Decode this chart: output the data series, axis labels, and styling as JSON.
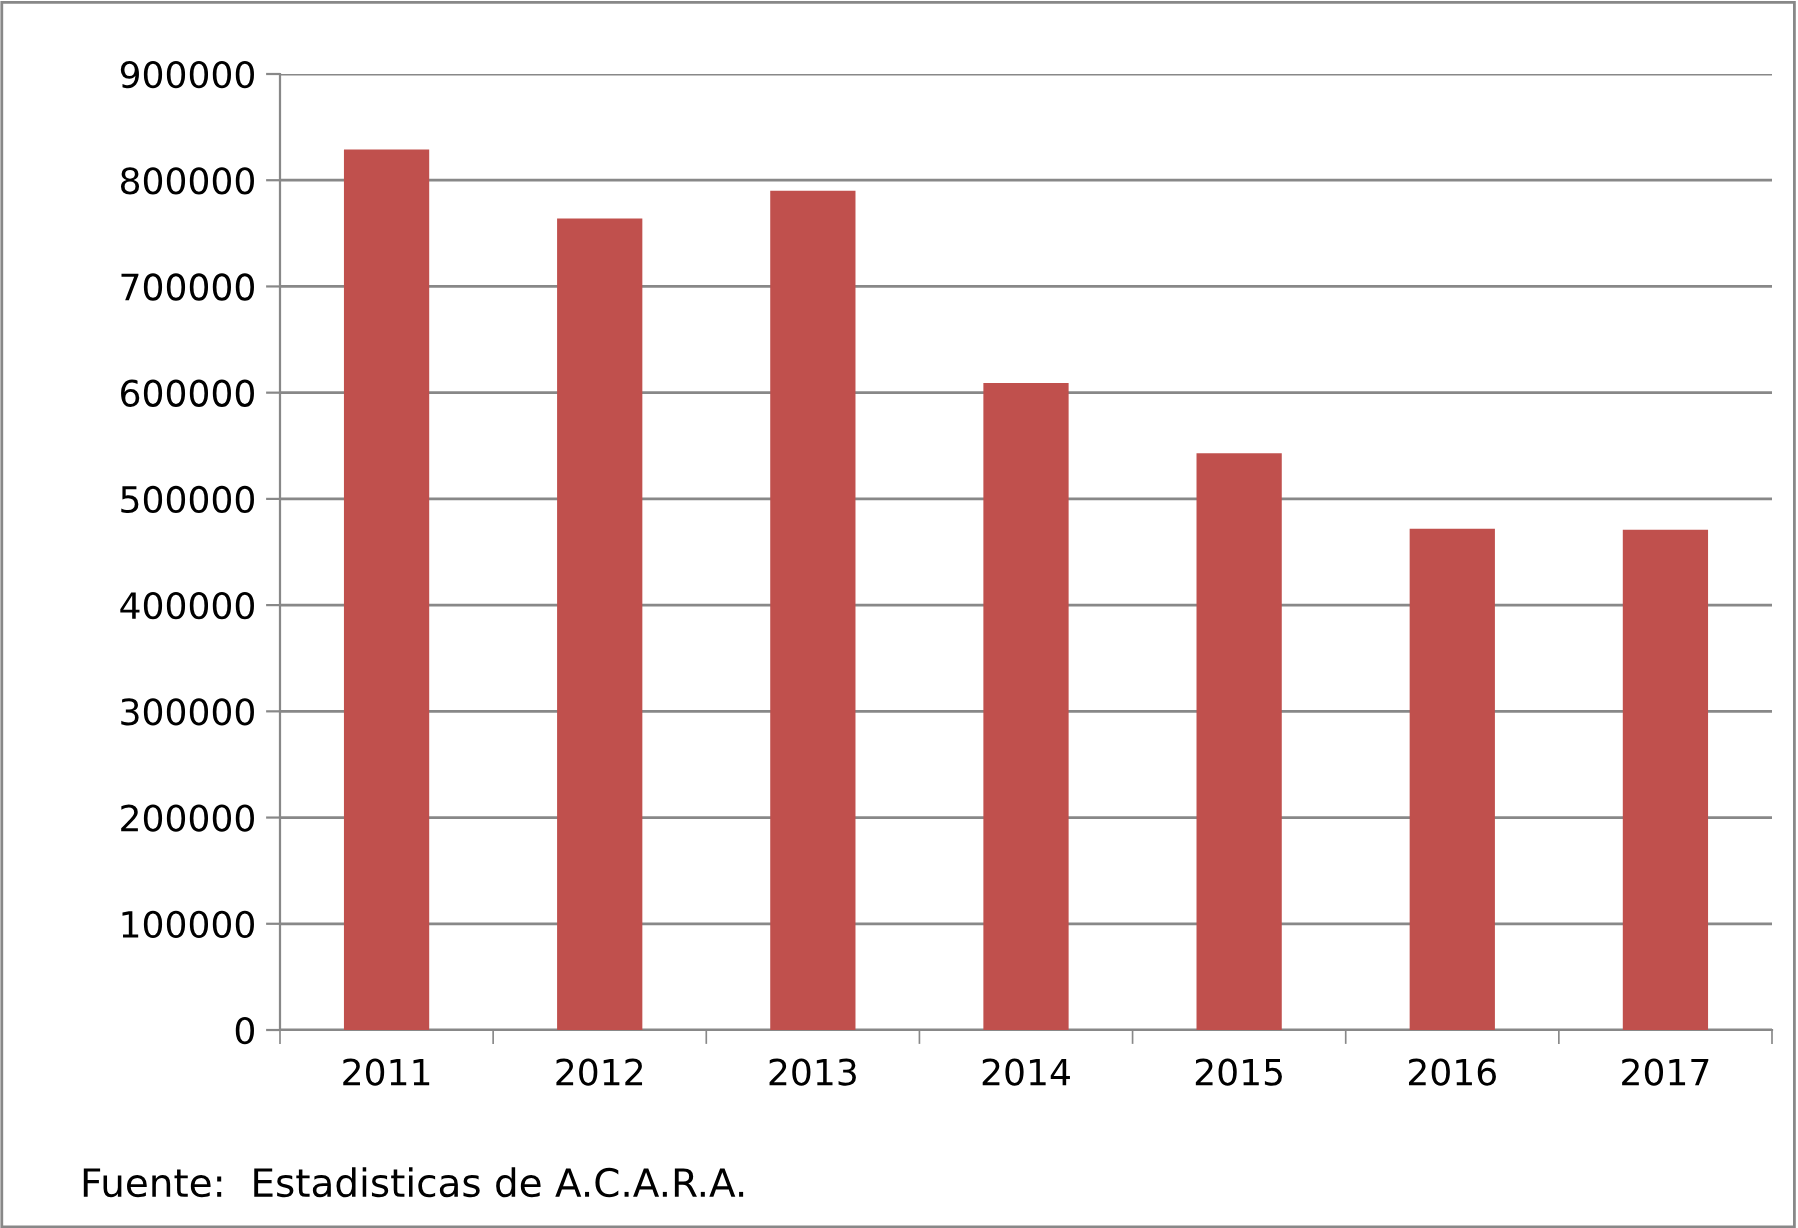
{
  "chart_data": {
    "type": "bar",
    "categories": [
      "2011",
      "2012",
      "2013",
      "2014",
      "2015",
      "2016",
      "2017"
    ],
    "values": [
      829000,
      764000,
      790000,
      609000,
      543000,
      472000,
      471000
    ],
    "color": "#c0504d",
    "ylim": [
      0,
      900000
    ],
    "yticks": [
      0,
      100000,
      200000,
      300000,
      400000,
      500000,
      600000,
      700000,
      800000,
      900000
    ],
    "grid": "y",
    "annotations": [
      "Fuente:  Estadisticas de A.C.A.R.A."
    ]
  }
}
